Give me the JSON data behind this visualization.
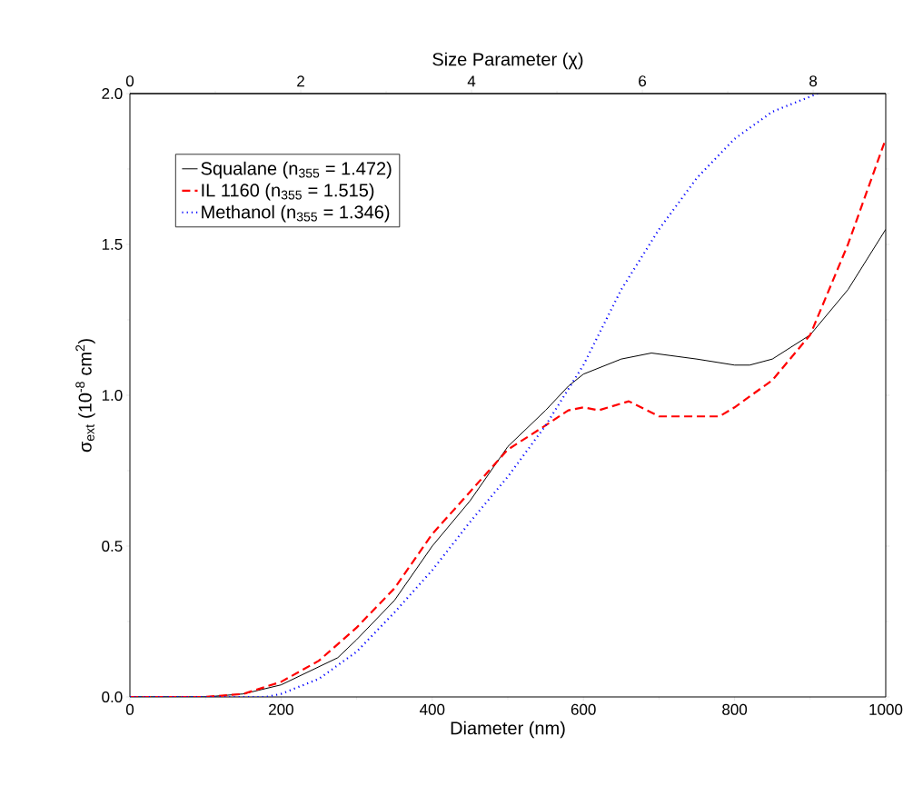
{
  "chart_data": {
    "type": "line",
    "xlabel": "Diameter (nm)",
    "ylabel": "σ$_{ext}$ (10$^{-8}$ cm$^{2}$)",
    "x2label": "Size Parameter (χ)",
    "xlim": [
      0,
      1000
    ],
    "xticks": [
      0,
      200,
      400,
      600,
      800,
      1000
    ],
    "ylim": [
      0,
      2.0
    ],
    "yticks": [
      {
        "value": 0,
        "label": "0.0"
      },
      {
        "value": 0.5,
        "label": "0.5"
      },
      {
        "value": 1.0,
        "label": "1.0"
      },
      {
        "value": 1.5,
        "label": "1.5"
      },
      {
        "value": 2.0,
        "label": "2.0"
      }
    ],
    "x2lim": [
      0,
      8.85
    ],
    "x2ticks": [
      0,
      2,
      4,
      6,
      8
    ],
    "legend": "top left",
    "grid": false,
    "marker": "none",
    "series": [
      {
        "name": "Squalane (n$_{355}$ = 1.472)",
        "color": "#000000",
        "line_style": "solid",
        "x": [
          0,
          100,
          150,
          200,
          250,
          275,
          300,
          350,
          400,
          450,
          500,
          550,
          580,
          600,
          650,
          690,
          750,
          800,
          820,
          850,
          900,
          950,
          1000
        ],
        "values": [
          0,
          0,
          0.01,
          0.04,
          0.1,
          0.13,
          0.19,
          0.32,
          0.5,
          0.65,
          0.83,
          0.95,
          1.03,
          1.07,
          1.12,
          1.14,
          1.12,
          1.1,
          1.1,
          1.12,
          1.2,
          1.35,
          1.55
        ]
      },
      {
        "name": "IL 1160 (n$_{355}$ = 1.515)",
        "color": "#ff0000",
        "line_style": "dashed",
        "x": [
          0,
          100,
          150,
          200,
          250,
          300,
          350,
          400,
          450,
          500,
          550,
          580,
          600,
          620,
          660,
          700,
          750,
          780,
          800,
          850,
          900,
          950,
          1000
        ],
        "values": [
          0,
          0,
          0.01,
          0.05,
          0.12,
          0.23,
          0.36,
          0.54,
          0.68,
          0.82,
          0.9,
          0.95,
          0.96,
          0.95,
          0.98,
          0.93,
          0.93,
          0.93,
          0.96,
          1.05,
          1.2,
          1.5,
          1.85
        ]
      },
      {
        "name": "Methanol (n$_{355}$ = 1.346)",
        "color": "#0000ff",
        "line_style": "dotted",
        "x": [
          0,
          100,
          180,
          200,
          250,
          300,
          350,
          400,
          450,
          500,
          550,
          600,
          650,
          700,
          750,
          800,
          850,
          910
        ],
        "values": [
          0,
          0,
          0,
          0.01,
          0.06,
          0.15,
          0.28,
          0.42,
          0.58,
          0.73,
          0.9,
          1.1,
          1.35,
          1.55,
          1.72,
          1.85,
          1.94,
          2.0
        ]
      }
    ]
  }
}
